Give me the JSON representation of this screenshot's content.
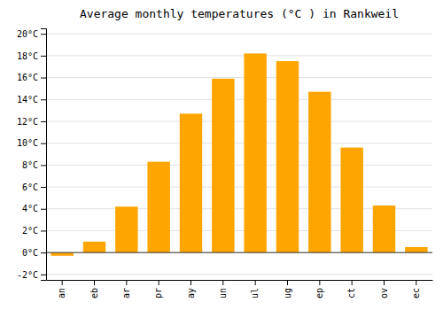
{
  "chart_data": {
    "type": "bar",
    "title": "Average monthly temperatures (°C ) in Rankweil",
    "categories": [
      "an",
      "eb",
      "ar",
      "pr",
      "ay",
      "un",
      "ul",
      "ug",
      "ep",
      "ct",
      "ov",
      "ec"
    ],
    "values": [
      -0.3,
      1.0,
      4.2,
      8.3,
      12.7,
      15.9,
      18.2,
      17.5,
      14.7,
      9.6,
      4.3,
      0.5
    ],
    "color": "#FFA500",
    "ylim": [
      -2.5,
      20.5
    ],
    "yticks": [
      {
        "value": -2,
        "label": "-2°C"
      },
      {
        "value": 0,
        "label": "0°C"
      },
      {
        "value": 2,
        "label": "2°C"
      },
      {
        "value": 4,
        "label": "4°C"
      },
      {
        "value": 6,
        "label": "6°C"
      },
      {
        "value": 8,
        "label": "8°C"
      },
      {
        "value": 10,
        "label": "10°C"
      },
      {
        "value": 12,
        "label": "12°C"
      },
      {
        "value": 14,
        "label": "14°C"
      },
      {
        "value": 16,
        "label": "16°C"
      },
      {
        "value": 18,
        "label": "18°C"
      },
      {
        "value": 20,
        "label": "20°C"
      }
    ],
    "grid": true
  }
}
